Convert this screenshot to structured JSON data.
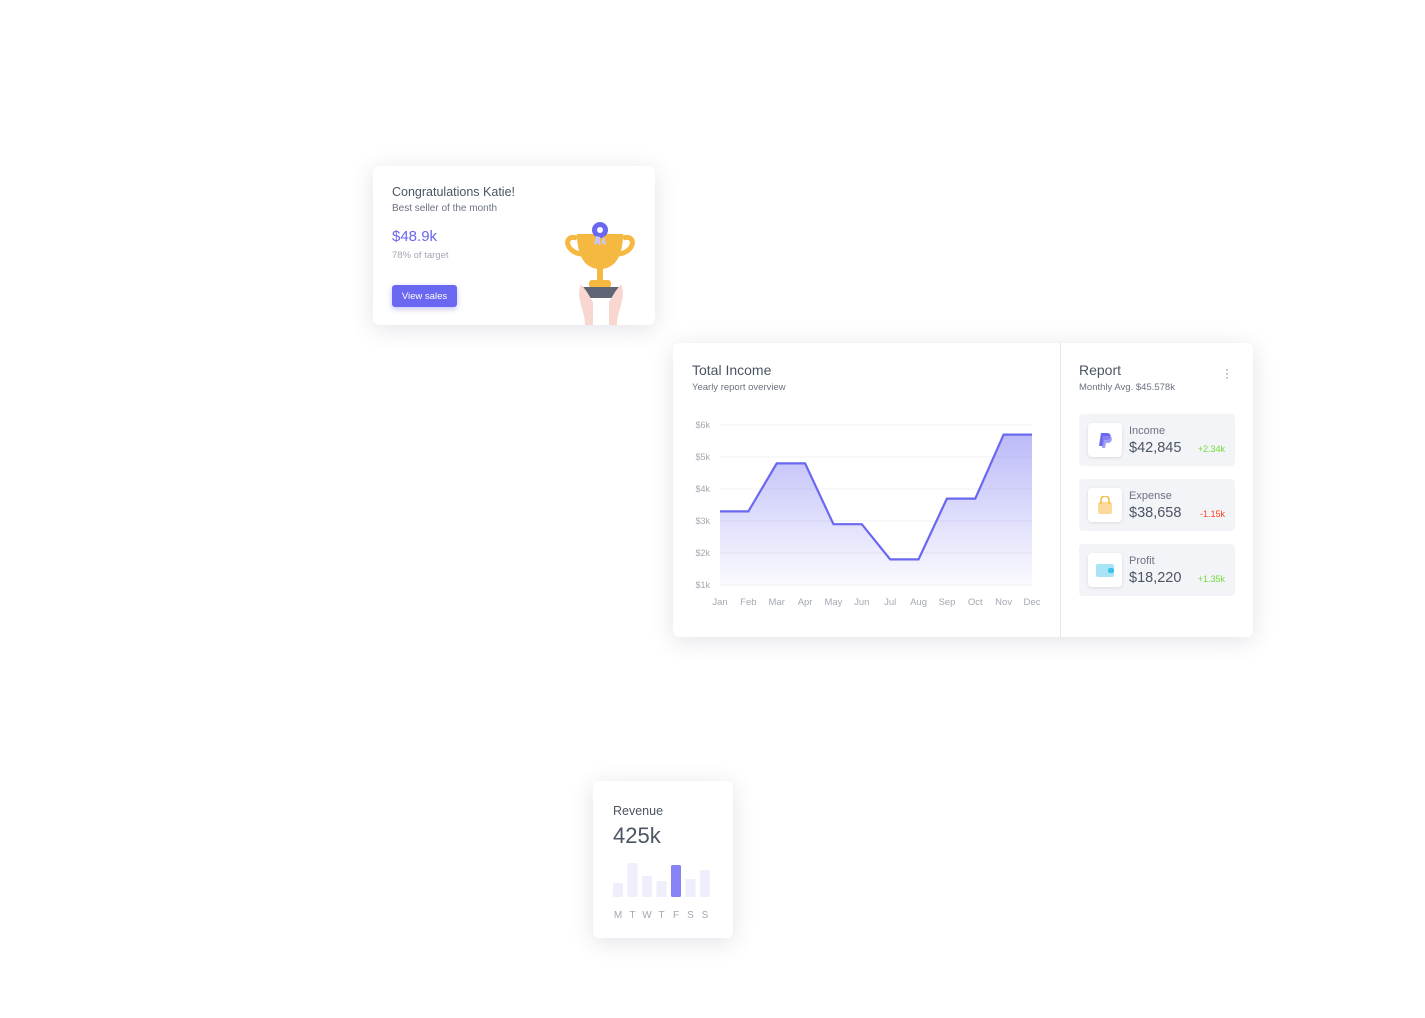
{
  "congrats": {
    "title": "Congratulations Katie!",
    "subtitle": "Best seller of the month",
    "amount": "$48.9k",
    "target": "78% of target",
    "button": "View sales"
  },
  "income": {
    "title": "Total Income",
    "subtitle": "Yearly report overview"
  },
  "report": {
    "title": "Report",
    "subtitle": "Monthly Avg. $45.578k",
    "items": [
      {
        "label": "Income",
        "value": "$42,845",
        "delta": "+2.34k",
        "icon": "paypal-icon",
        "delta_color": "#71dd37"
      },
      {
        "label": "Expense",
        "value": "$38,658",
        "delta": "-1.15k",
        "icon": "shopping-bag-icon",
        "delta_color": "#ff3e1d"
      },
      {
        "label": "Profit",
        "value": "$18,220",
        "delta": "+1.35k",
        "icon": "wallet-icon",
        "delta_color": "#71dd37"
      }
    ]
  },
  "revenue": {
    "title": "Revenue",
    "value": "425k",
    "days": [
      "M",
      "T",
      "W",
      "T",
      "F",
      "S",
      "S"
    ],
    "values": [
      14,
      34,
      21,
      16,
      32,
      18,
      27
    ],
    "highlight_index": 4
  },
  "colors": {
    "accent": "#6a67f0",
    "bar": "#eeeefc",
    "highlight": "#8583f5"
  },
  "chart_data": {
    "type": "area",
    "categories": [
      "Jan",
      "Feb",
      "Mar",
      "Apr",
      "May",
      "Jun",
      "Jul",
      "Aug",
      "Sep",
      "Oct",
      "Nov",
      "Dec"
    ],
    "values": [
      3.3,
      3.3,
      4.8,
      4.8,
      2.9,
      2.9,
      1.8,
      1.8,
      3.7,
      3.7,
      5.7,
      5.7
    ],
    "yticks": [
      "$1k",
      "$2k",
      "$3k",
      "$4k",
      "$5k",
      "$6k"
    ],
    "ylim": [
      1,
      6
    ],
    "grid": true,
    "color": "#6a67f0"
  }
}
